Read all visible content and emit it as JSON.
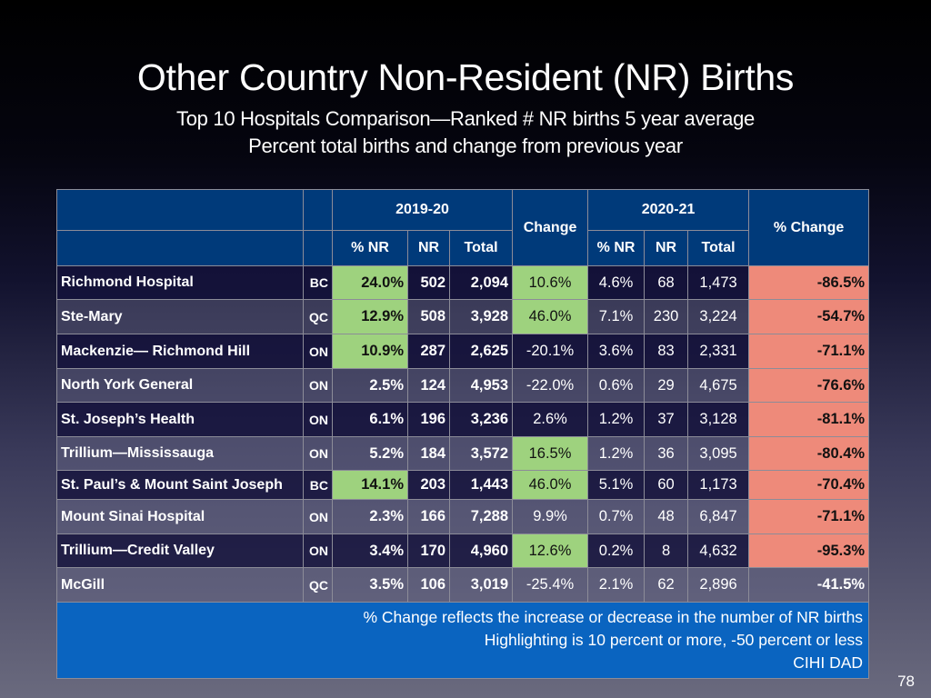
{
  "slide": {
    "title": "Other Country Non-Resident (NR) Births",
    "subtitle_line1": "Top 10 Hospitals Comparison—Ranked # NR births 5 year average",
    "subtitle_line2": "Percent total births and change from previous year",
    "page_number": "78"
  },
  "colors": {
    "header_bg": "#003a7a",
    "highlight_green": "#9ed27e",
    "highlight_red": "#ee8a7a",
    "footer_bg": "#0a64c0"
  },
  "table": {
    "headers": {
      "period1": "2019-20",
      "change": "Change",
      "period2": "2020-21",
      "pct_change": "% Change",
      "p1_pct_nr": "% NR",
      "p1_nr": "NR",
      "p1_total": "Total",
      "p2_pct_nr": "% NR",
      "p2_nr": "NR",
      "p2_total": "Total"
    },
    "rows": [
      {
        "hospital": "Richmond Hospital",
        "province": "BC",
        "p1_pct_nr": "24.0%",
        "p1_nr": "502",
        "p1_total": "2,094",
        "change": "10.6%",
        "p2_pct_nr": "4.6%",
        "p2_nr": "68",
        "p2_total": "1,473",
        "pct_change": "-86.5%",
        "hl_p1_pct": true,
        "hl_change": true,
        "hl_pct_change": true
      },
      {
        "hospital": "Ste-Mary",
        "province": "QC",
        "p1_pct_nr": "12.9%",
        "p1_nr": "508",
        "p1_total": "3,928",
        "change": "46.0%",
        "p2_pct_nr": "7.1%",
        "p2_nr": "230",
        "p2_total": "3,224",
        "pct_change": "-54.7%",
        "hl_p1_pct": true,
        "hl_change": true,
        "hl_pct_change": true
      },
      {
        "hospital": "Mackenzie— Richmond Hill",
        "province": "ON",
        "p1_pct_nr": "10.9%",
        "p1_nr": "287",
        "p1_total": "2,625",
        "change": "-20.1%",
        "p2_pct_nr": "3.6%",
        "p2_nr": "83",
        "p2_total": "2,331",
        "pct_change": "-71.1%",
        "hl_p1_pct": true,
        "hl_change": false,
        "hl_pct_change": true
      },
      {
        "hospital": "North York General",
        "province": "ON",
        "p1_pct_nr": "2.5%",
        "p1_nr": "124",
        "p1_total": "4,953",
        "change": "-22.0%",
        "p2_pct_nr": "0.6%",
        "p2_nr": "29",
        "p2_total": "4,675",
        "pct_change": "-76.6%",
        "hl_p1_pct": false,
        "hl_change": false,
        "hl_pct_change": true
      },
      {
        "hospital": "St. Joseph’s Health",
        "province": "ON",
        "p1_pct_nr": "6.1%",
        "p1_nr": "196",
        "p1_total": "3,236",
        "change": "2.6%",
        "p2_pct_nr": "1.2%",
        "p2_nr": "37",
        "p2_total": "3,128",
        "pct_change": "-81.1%",
        "hl_p1_pct": false,
        "hl_change": false,
        "hl_pct_change": true
      },
      {
        "hospital": "Trillium—Mississauga",
        "province": "ON",
        "p1_pct_nr": "5.2%",
        "p1_nr": "184",
        "p1_total": "3,572",
        "change": "16.5%",
        "p2_pct_nr": "1.2%",
        "p2_nr": "36",
        "p2_total": "3,095",
        "pct_change": "-80.4%",
        "hl_p1_pct": false,
        "hl_change": true,
        "hl_pct_change": true
      },
      {
        "hospital": "St. Paul’s & Mount Saint Joseph",
        "province": "BC",
        "p1_pct_nr": "14.1%",
        "p1_nr": "203",
        "p1_total": "1,443",
        "change": "46.0%",
        "p2_pct_nr": "5.1%",
        "p2_nr": "60",
        "p2_total": "1,173",
        "pct_change": "-70.4%",
        "hl_p1_pct": true,
        "hl_change": true,
        "hl_pct_change": true
      },
      {
        "hospital": "Mount Sinai Hospital",
        "province": "ON",
        "p1_pct_nr": "2.3%",
        "p1_nr": "166",
        "p1_total": "7,288",
        "change": "9.9%",
        "p2_pct_nr": "0.7%",
        "p2_nr": "48",
        "p2_total": "6,847",
        "pct_change": "-71.1%",
        "hl_p1_pct": false,
        "hl_change": false,
        "hl_pct_change": true
      },
      {
        "hospital": "Trillium—Credit Valley",
        "province": "ON",
        "p1_pct_nr": "3.4%",
        "p1_nr": "170",
        "p1_total": "4,960",
        "change": "12.6%",
        "p2_pct_nr": "0.2%",
        "p2_nr": "8",
        "p2_total": "4,632",
        "pct_change": "-95.3%",
        "hl_p1_pct": false,
        "hl_change": true,
        "hl_pct_change": true
      },
      {
        "hospital": "McGill",
        "province": "QC",
        "p1_pct_nr": "3.5%",
        "p1_nr": "106",
        "p1_total": "3,019",
        "change": "-25.4%",
        "p2_pct_nr": "2.1%",
        "p2_nr": "62",
        "p2_total": "2,896",
        "pct_change": "-41.5%",
        "hl_p1_pct": false,
        "hl_change": false,
        "hl_pct_change": false
      }
    ],
    "footer": {
      "line1": "% Change reflects the increase or decrease in the number of NR births",
      "line2": "Highlighting is 10 percent or more, -50 percent or less",
      "line3": "CIHI DAD"
    }
  }
}
